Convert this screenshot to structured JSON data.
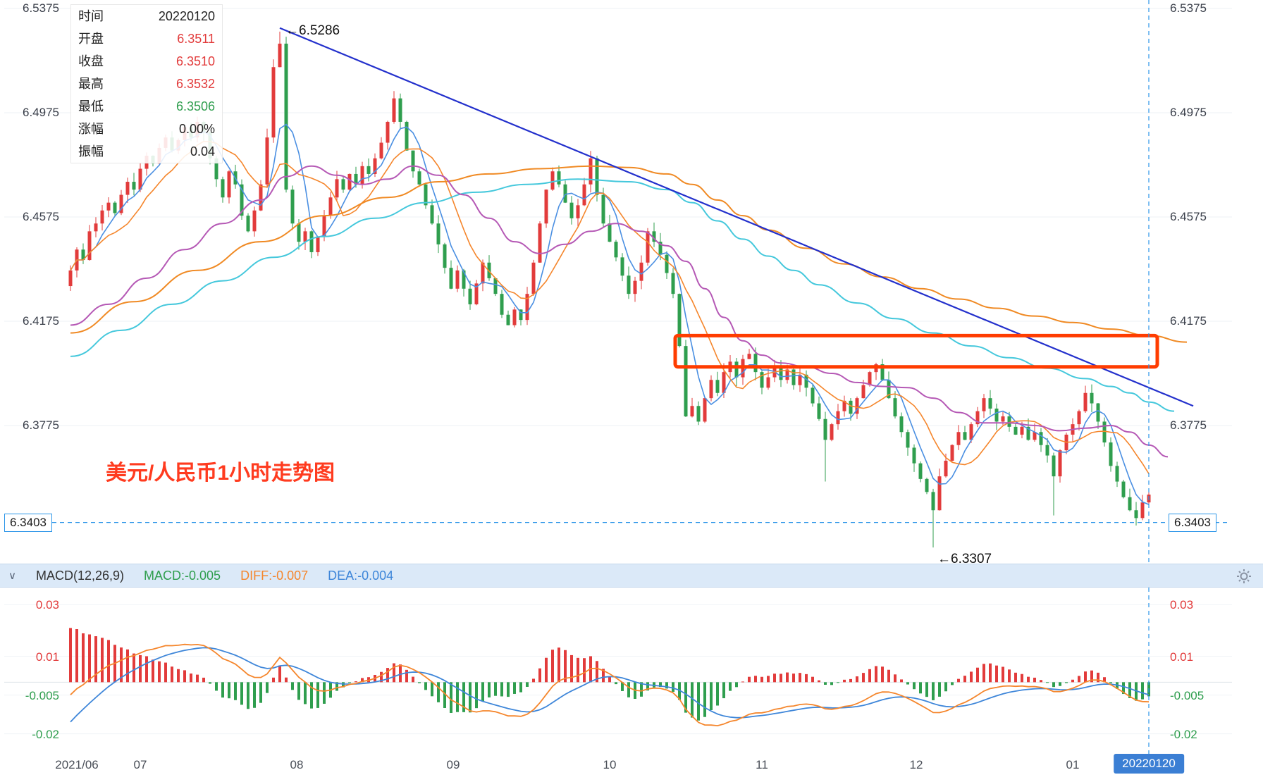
{
  "info_panel": {
    "rows": [
      {
        "label": "时间",
        "value": "20220120",
        "color": "dark"
      },
      {
        "label": "开盘",
        "value": "6.3511",
        "color": "red"
      },
      {
        "label": "收盘",
        "value": "6.3510",
        "color": "red"
      },
      {
        "label": "最高",
        "value": "6.3532",
        "color": "red"
      },
      {
        "label": "最低",
        "value": "6.3506",
        "color": "green"
      },
      {
        "label": "涨幅",
        "value": "0.00%",
        "color": "dark"
      },
      {
        "label": "振幅",
        "value": "0.04",
        "color": "dark"
      }
    ]
  },
  "watermark_title": "美元/人民币1小时走势图",
  "price_axis": {
    "current": "6.3403"
  },
  "macd_header": {
    "collapse_icon": "∨",
    "name": "MACD(12,26,9)",
    "macd_label": "MACD:-0.005",
    "diff_label": "DIFF:-0.007",
    "dea_label": "DEA:-0.004"
  },
  "x_axis": {
    "labels": [
      {
        "text": "2021/06"
      },
      {
        "text": "07"
      },
      {
        "text": "08"
      },
      {
        "text": "09"
      },
      {
        "text": "10"
      },
      {
        "text": "11"
      },
      {
        "text": "12"
      },
      {
        "text": "01"
      }
    ],
    "current_label": "20220120"
  },
  "colors": {
    "up": "#e23b3b",
    "down": "#2f9e4e",
    "diff": "#f5862c",
    "dea": "#3e86d9",
    "trend": "#2330cc",
    "highlight": "#ff3c00",
    "dashed": "#2b95e8",
    "accent_blue": "#3b7fd4"
  },
  "chart_data": [
    {
      "type": "candlestick",
      "title": "美元/人民币1小时走势图",
      "y_ticks": [
        6.5375,
        6.4975,
        6.4575,
        6.4175,
        6.3775
      ],
      "current_price": 6.3403,
      "ylim": [
        6.326,
        6.541
      ],
      "x_labels": [
        "2021/06",
        "07",
        "08",
        "09",
        "10",
        "11",
        "12",
        "01"
      ],
      "closes": [
        6.437,
        6.445,
        6.441,
        6.452,
        6.455,
        6.46,
        6.463,
        6.459,
        6.466,
        6.471,
        6.468,
        6.476,
        6.481,
        6.478,
        6.484,
        6.488,
        6.483,
        6.487,
        6.492,
        6.488,
        6.494,
        6.49,
        6.48,
        6.472,
        6.465,
        6.475,
        6.47,
        6.458,
        6.452,
        6.46,
        6.47,
        6.488,
        6.515,
        6.524,
        6.468,
        6.455,
        6.448,
        6.452,
        6.444,
        6.45,
        6.458,
        6.465,
        6.472,
        6.468,
        6.474,
        6.47,
        6.477,
        6.474,
        6.48,
        6.486,
        6.494,
        6.503,
        6.494,
        6.483,
        6.475,
        6.47,
        6.462,
        6.455,
        6.447,
        6.438,
        6.43,
        6.437,
        6.43,
        6.424,
        6.432,
        6.44,
        6.434,
        6.428,
        6.42,
        6.416,
        6.422,
        6.418,
        6.428,
        6.44,
        6.455,
        6.468,
        6.475,
        6.47,
        6.463,
        6.457,
        6.462,
        6.47,
        6.48,
        6.466,
        6.455,
        6.448,
        6.442,
        6.435,
        6.428,
        6.433,
        6.44,
        6.452,
        6.448,
        6.443,
        6.436,
        6.428,
        6.408,
        6.381,
        6.385,
        6.379,
        6.388,
        6.395,
        6.39,
        6.398,
        6.402,
        6.396,
        6.403,
        6.405,
        6.398,
        6.392,
        6.396,
        6.4,
        6.395,
        6.399,
        6.393,
        6.397,
        6.392,
        6.386,
        6.38,
        6.372,
        6.378,
        6.383,
        6.387,
        6.382,
        6.388,
        6.393,
        6.398,
        6.401,
        6.395,
        6.388,
        6.381,
        6.375,
        6.369,
        6.363,
        6.357,
        6.352,
        6.345,
        6.358,
        6.364,
        6.37,
        6.375,
        6.372,
        6.378,
        6.383,
        6.388,
        6.384,
        6.379,
        6.381,
        6.377,
        6.374,
        6.377,
        6.372,
        6.375,
        6.37,
        6.366,
        6.358,
        6.368,
        6.374,
        6.378,
        6.383,
        6.39,
        6.386,
        6.379,
        6.371,
        6.362,
        6.356,
        6.35,
        6.345,
        6.342,
        6.348,
        6.351
      ],
      "special_candles": [
        {
          "i": 33,
          "high": 6.5286
        },
        {
          "i": 119,
          "low": 6.356
        },
        {
          "i": 136,
          "low": 6.3307
        },
        {
          "i": 155,
          "low": 6.343
        }
      ],
      "high_annotation": {
        "i": 33,
        "price": 6.5286,
        "text": "←6.5286"
      },
      "low_annotation": {
        "i": 136,
        "price": 6.3307,
        "text": "←6.3307"
      },
      "trend_line": {
        "i1": 33,
        "p1": 6.53,
        "i2": 177,
        "p2": 6.385
      },
      "highlight_box": {
        "i1": 96,
        "i2": 172,
        "p_top": 6.412,
        "p_bottom": 6.4
      },
      "overlays": [
        {
          "name": "ma-long-orange",
          "color": "#f08a24",
          "anchors": [
            [
              0,
              6.413
            ],
            [
              10,
              6.425
            ],
            [
              20,
              6.437
            ],
            [
              30,
              6.448
            ],
            [
              40,
              6.458
            ],
            [
              50,
              6.465
            ],
            [
              58,
              6.471
            ],
            [
              66,
              6.474
            ],
            [
              74,
              6.476
            ],
            [
              82,
              6.477
            ],
            [
              88,
              6.4765
            ],
            [
              94,
              6.474
            ],
            [
              98,
              6.47
            ],
            [
              102,
              6.464
            ],
            [
              106,
              6.458
            ],
            [
              110,
              6.4525
            ],
            [
              116,
              6.4455
            ],
            [
              122,
              6.4395
            ],
            [
              128,
              6.4345
            ],
            [
              134,
              6.43
            ],
            [
              140,
              6.426
            ],
            [
              146,
              6.4225
            ],
            [
              152,
              6.4195
            ],
            [
              158,
              6.417
            ],
            [
              164,
              6.4145
            ],
            [
              170,
              6.412
            ],
            [
              176,
              6.4095
            ]
          ]
        },
        {
          "name": "ma-60-cyan",
          "color": "#45c8dc",
          "anchors": [
            [
              0,
              6.404
            ],
            [
              8,
              6.414
            ],
            [
              16,
              6.424
            ],
            [
              24,
              6.433
            ],
            [
              32,
              6.442
            ],
            [
              40,
              6.45
            ],
            [
              48,
              6.457
            ],
            [
              56,
              6.463
            ],
            [
              64,
              6.467
            ],
            [
              72,
              6.47
            ],
            [
              80,
              6.472
            ],
            [
              88,
              6.471
            ],
            [
              94,
              6.468
            ],
            [
              98,
              6.463
            ],
            [
              102,
              6.456
            ],
            [
              106,
              6.449
            ],
            [
              110,
              6.4425
            ],
            [
              114,
              6.437
            ],
            [
              118,
              6.4315
            ],
            [
              124,
              6.4245
            ],
            [
              130,
              6.4185
            ],
            [
              136,
              6.413
            ],
            [
              142,
              6.408
            ],
            [
              148,
              6.4035
            ],
            [
              154,
              6.3995
            ],
            [
              160,
              6.3955
            ],
            [
              164,
              6.3925
            ],
            [
              167,
              6.39
            ],
            [
              170,
              6.3865
            ],
            [
              174,
              6.383
            ]
          ]
        },
        {
          "name": "ma-30-magenta",
          "color": "#b558b5",
          "anchors": [
            [
              0,
              6.416
            ],
            [
              6,
              6.424
            ],
            [
              12,
              6.434
            ],
            [
              18,
              6.445
            ],
            [
              24,
              6.455
            ],
            [
              30,
              6.464
            ],
            [
              34,
              6.473
            ],
            [
              38,
              6.477
            ],
            [
              42,
              6.4735
            ],
            [
              46,
              6.47
            ],
            [
              50,
              6.472
            ],
            [
              54,
              6.477
            ],
            [
              58,
              6.4735
            ],
            [
              62,
              6.466
            ],
            [
              66,
              6.457
            ],
            [
              70,
              6.448
            ],
            [
              74,
              6.4435
            ],
            [
              78,
              6.447
            ],
            [
              82,
              6.452
            ],
            [
              86,
              6.455
            ],
            [
              90,
              6.452
            ],
            [
              94,
              6.4465
            ],
            [
              97,
              6.4405
            ],
            [
              100,
              6.43
            ],
            [
              103,
              6.419
            ],
            [
              106,
              6.41
            ],
            [
              109,
              6.4045
            ],
            [
              112,
              6.4015
            ],
            [
              116,
              6.4
            ],
            [
              120,
              6.3975
            ],
            [
              124,
              6.394
            ],
            [
              128,
              6.3925
            ],
            [
              132,
              6.392
            ],
            [
              136,
              6.388
            ],
            [
              140,
              6.3825
            ],
            [
              144,
              6.3785
            ],
            [
              148,
              6.3785
            ],
            [
              152,
              6.3775
            ],
            [
              156,
              6.3755
            ],
            [
              160,
              6.3765
            ],
            [
              164,
              6.3775
            ],
            [
              167,
              6.375
            ],
            [
              170,
              6.37
            ],
            [
              173,
              6.3655
            ]
          ]
        }
      ],
      "computed_ma": [
        {
          "name": "ma5-blue",
          "color": "#4a8fe2",
          "period": 5
        },
        {
          "name": "ma10-orange",
          "color": "#f5862c",
          "period": 10
        }
      ]
    },
    {
      "type": "macd",
      "params": [
        12,
        26,
        9
      ],
      "displayed": {
        "macd": -0.005,
        "diff": -0.007,
        "dea": -0.004
      },
      "y_ticks": [
        0.03,
        0.01,
        -0.005,
        -0.02
      ],
      "ylim": [
        -0.025,
        0.035
      ],
      "ema_seeds": {
        "ema12_offset": -0.02,
        "ema26_offset": -0.013,
        "dea_seed": -0.018
      }
    }
  ]
}
